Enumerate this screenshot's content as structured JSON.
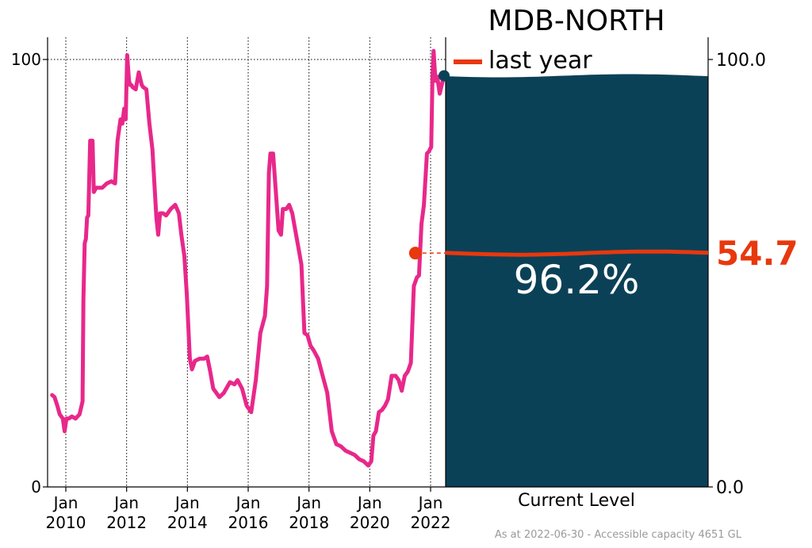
{
  "chart_data": {
    "type": "line",
    "title": "MDB-NORTH",
    "line_color": "#e8288a",
    "fill_color": "#0b4157",
    "last_year_color": "#e8380d",
    "ylim": [
      0,
      100
    ],
    "y_ticks_left": [
      "0",
      "100"
    ],
    "y_ticks_right": [
      "0.0",
      "100.0"
    ],
    "x_ticks": [
      {
        "x": 2010.0,
        "label1": "Jan",
        "label2": "2010"
      },
      {
        "x": 2012.0,
        "label1": "Jan",
        "label2": "2012"
      },
      {
        "x": 2014.0,
        "label1": "Jan",
        "label2": "2014"
      },
      {
        "x": 2016.0,
        "label1": "Jan",
        "label2": "2016"
      },
      {
        "x": 2018.0,
        "label1": "Jan",
        "label2": "2018"
      },
      {
        "x": 2020.0,
        "label1": "Jan",
        "label2": "2020"
      },
      {
        "x": 2022.0,
        "label1": "Jan",
        "label2": "2022"
      }
    ],
    "x": [
      2009.55,
      2009.63,
      2009.72,
      2009.8,
      2009.9,
      2009.96,
      2010.02,
      2010.1,
      2010.2,
      2010.32,
      2010.45,
      2010.55,
      2010.58,
      2010.62,
      2010.66,
      2010.7,
      2010.74,
      2010.8,
      2010.88,
      2010.92,
      2011.0,
      2011.05,
      2011.1,
      2011.2,
      2011.35,
      2011.5,
      2011.62,
      2011.7,
      2011.8,
      2011.86,
      2011.92,
      2011.97,
      2012.02,
      2012.08,
      2012.12,
      2012.16,
      2012.2,
      2012.3,
      2012.4,
      2012.5,
      2012.55,
      2012.65,
      2012.75,
      2012.85,
      2012.98,
      2013.04,
      2013.1,
      2013.2,
      2013.3,
      2013.45,
      2013.6,
      2013.72,
      2013.8,
      2013.9,
      2013.98,
      2014.08,
      2014.15,
      2014.25,
      2014.4,
      2014.55,
      2014.65,
      2014.75,
      2014.85,
      2014.95,
      2015.05,
      2015.2,
      2015.4,
      2015.55,
      2015.65,
      2015.8,
      2015.95,
      2016.1,
      2016.25,
      2016.4,
      2016.55,
      2016.62,
      2016.68,
      2016.73,
      2016.77,
      2016.82,
      2016.9,
      2017.0,
      2017.08,
      2017.14,
      2017.18,
      2017.25,
      2017.35,
      2017.45,
      2017.55,
      2017.65,
      2017.75,
      2017.85,
      2017.95,
      2018.05,
      2018.15,
      2018.3,
      2018.45,
      2018.6,
      2018.75,
      2018.9,
      2019.05,
      2019.2,
      2019.35,
      2019.5,
      2019.65,
      2019.8,
      2019.95,
      2020.05,
      2020.12,
      2020.2,
      2020.3,
      2020.4,
      2020.5,
      2020.6,
      2020.72,
      2020.85,
      2020.95,
      2021.05,
      2021.15,
      2021.25,
      2021.35,
      2021.45,
      2021.55,
      2021.62,
      2021.7,
      2021.78,
      2021.88,
      2021.95,
      2021.98,
      2022.02,
      2022.06,
      2022.1,
      2022.16,
      2022.22,
      2022.3,
      2022.4,
      2022.5
    ],
    "values": [
      21.5,
      21.0,
      19.0,
      17.0,
      16.0,
      13.0,
      16.0,
      16.0,
      16.5,
      16.0,
      17.0,
      20.0,
      44.0,
      57.0,
      58.0,
      63.0,
      63.5,
      81.0,
      81.0,
      69.0,
      70.0,
      70.0,
      70.0,
      70.0,
      71.0,
      71.5,
      71.0,
      81.0,
      86.0,
      85.0,
      88.5,
      86.0,
      101.0,
      95.0,
      94.0,
      94.0,
      93.5,
      93.0,
      97.0,
      94.0,
      93.5,
      93.0,
      85.0,
      79.0,
      63.0,
      59.0,
      64.0,
      64.0,
      63.5,
      65.0,
      66.0,
      64.0,
      59.0,
      54.0,
      45.0,
      30.0,
      27.5,
      29.5,
      30.0,
      30.0,
      30.5,
      27.0,
      23.0,
      22.0,
      21.0,
      22.0,
      24.5,
      24.0,
      25.0,
      23.0,
      19.0,
      17.5,
      25.0,
      36.0,
      40.0,
      47.0,
      73.5,
      78.0,
      78.0,
      78.0,
      70.0,
      60.0,
      59.0,
      65.0,
      65.0,
      65.0,
      66.0,
      64.0,
      60.0,
      56.0,
      52.0,
      36.0,
      35.5,
      33.0,
      32.0,
      30.0,
      26.0,
      22.0,
      13.0,
      10.0,
      9.5,
      8.5,
      8.0,
      7.5,
      6.5,
      6.0,
      5.0,
      6.0,
      12.0,
      13.0,
      17.5,
      18.0,
      19.0,
      20.5,
      26.0,
      26.0,
      25.0,
      22.5,
      26.0,
      27.0,
      29.0,
      47.0,
      49.0,
      49.5,
      61.5,
      66.0,
      78.0,
      78.5,
      79.0,
      79.5,
      95.0,
      102.0,
      95.0,
      96.0,
      92.0,
      95.0,
      96.0
    ],
    "last_year_marker": {
      "x": 2021.5,
      "value": 54.7
    },
    "current_level_label": "Current Level",
    "current_percent": 96.2,
    "current_percent_label": "96.2%",
    "last_year_value_label": "54.7",
    "legend_label": "last year",
    "footnote": "As at 2022-06-30 - Accessible capacity 4651 GL"
  }
}
